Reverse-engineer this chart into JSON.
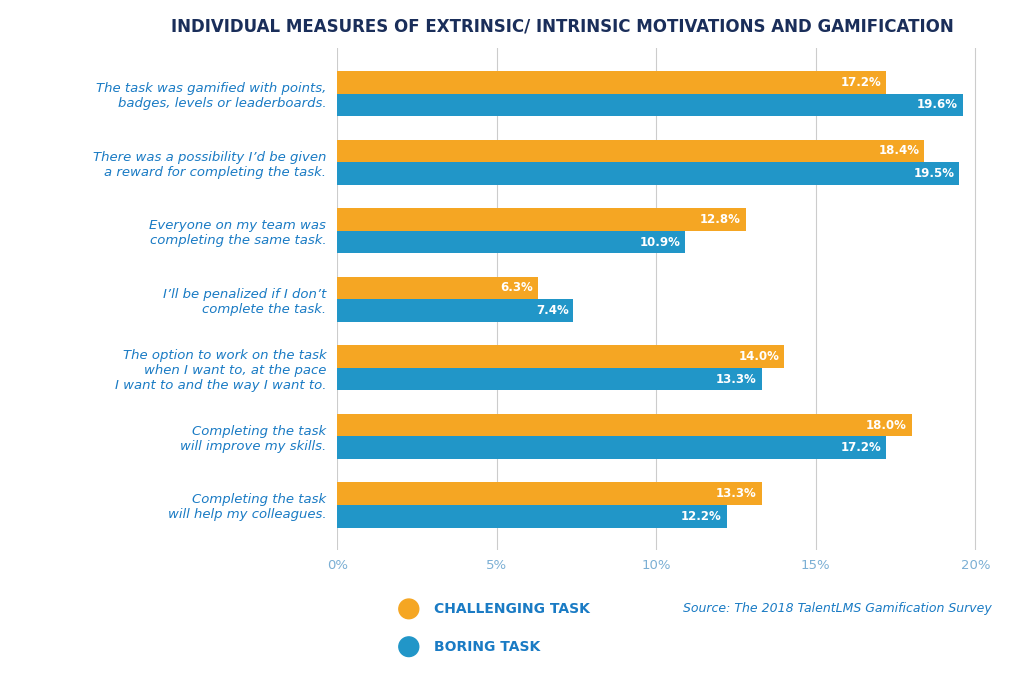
{
  "title": "INDIVIDUAL MEASURES OF EXTRINSIC/ INTRINSIC MOTIVATIONS AND GAMIFICATION",
  "categories": [
    "The task was gamified with points,\nbadges, levels or leaderboards.",
    "There was a possibility I’d be given\na reward for completing the task.",
    "Everyone on my team was\ncompleting the same task.",
    "I’ll be penalized if I don’t\ncomplete the task.",
    "The option to work on the task\nwhen I want to, at the pace\nI want to and the way I want to.",
    "Completing the task\nwill improve my skills.",
    "Completing the task\nwill help my colleagues."
  ],
  "challenging_values": [
    17.2,
    18.4,
    12.8,
    6.3,
    14.0,
    18.0,
    13.3
  ],
  "boring_values": [
    19.6,
    19.5,
    10.9,
    7.4,
    13.3,
    17.2,
    12.2
  ],
  "challenging_color": "#F5A623",
  "boring_color": "#2196C8",
  "title_color": "#1A2E5A",
  "label_color": "#1A7BC4",
  "bar_label_color": "#FFFFFF",
  "xlabel_ticks": [
    0,
    5,
    10,
    15,
    20
  ],
  "xlabel_tick_labels": [
    "0%",
    "5%",
    "10%",
    "15%",
    "20%"
  ],
  "legend_challenging": "CHALLENGING TASK",
  "legend_boring": "BORING TASK",
  "source_text": "Source: The 2018 TalentLMS Gamification Survey",
  "background_color": "#FFFFFF",
  "bar_height": 0.33,
  "xlim_max": 20.5
}
